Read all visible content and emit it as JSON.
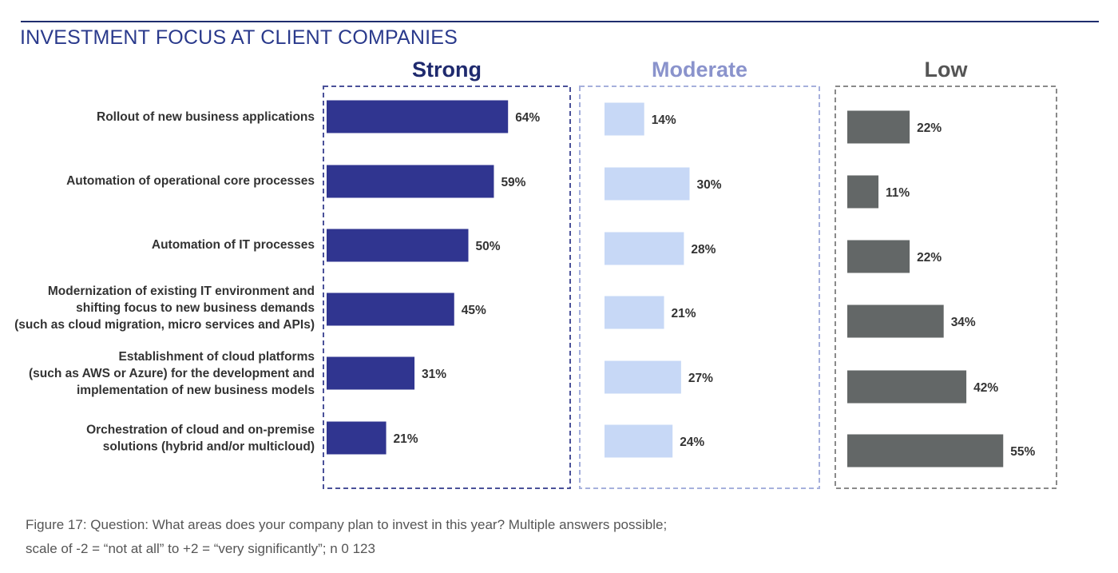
{
  "title": "INVESTMENT FOCUS AT CLIENT COMPANIES",
  "caption": {
    "line1": "Figure 17: Question: What areas does your company plan to invest in this year? Multiple answers possible;",
    "line2": "scale of -2 = “not at all” to +2 = “very significantly”; n 0 123"
  },
  "colors": {
    "title": "#2a3a8c",
    "strong": "#303590",
    "moderate": "#c7d8f6",
    "low": "#636767",
    "strong_header": "#1f2a6e",
    "moderate_header": "#8a93cc",
    "low_header": "#555555",
    "strong_border": "#4a5199",
    "moderate_border": "#a6b0dc",
    "low_border": "#8a8a8a"
  },
  "chart_data": {
    "type": "bar",
    "orientation": "horizontal",
    "categories": [
      [
        "Rollout of new business applications"
      ],
      [
        "Automation of operational core processes"
      ],
      [
        "Automation of IT processes"
      ],
      [
        "Modernization of existing IT environment and",
        "shifting focus to new business demands",
        "(such as cloud migration, micro services and APIs)"
      ],
      [
        "Establishment of cloud platforms",
        "(such as AWS or Azure) for the development and",
        "implementation of new business models"
      ],
      [
        "Orchestration of cloud and on-premise",
        "solutions (hybrid and/or multicloud)"
      ]
    ],
    "series": [
      {
        "name": "Strong",
        "values": [
          64,
          59,
          50,
          45,
          31,
          21
        ],
        "labels": [
          "64%",
          "59%",
          "50%",
          "45%",
          "31%",
          "21%"
        ]
      },
      {
        "name": "Moderate",
        "values": [
          14,
          30,
          28,
          21,
          27,
          24
        ],
        "labels": [
          "14%",
          "30%",
          "28%",
          "21%",
          "27%",
          "24%"
        ]
      },
      {
        "name": "Low",
        "values": [
          22,
          11,
          22,
          34,
          42,
          55
        ],
        "labels": [
          "22%",
          "11%",
          "22%",
          "34%",
          "42%",
          "55%"
        ]
      }
    ],
    "unit": "%",
    "grid": false,
    "legend": "panel headers"
  }
}
